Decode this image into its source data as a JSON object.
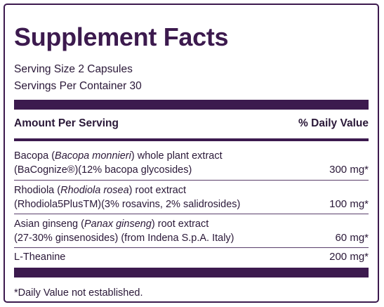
{
  "title": "Supplement Facts",
  "serving_size": "Serving Size 2 Capsules",
  "servings_per_container": "Servings Per Container 30",
  "header": {
    "amount_per_serving": "Amount Per Serving",
    "daily_value": "% Daily Value"
  },
  "ingredients": [
    {
      "line1_pre": "Bacopa (",
      "line1_italic": "Bacopa monnieri",
      "line1_post": ") whole plant extract",
      "line2": "(BaCognize®)(12% bacopa glycosides)",
      "amount": "300 mg*"
    },
    {
      "line1_pre": "Rhodiola (",
      "line1_italic": "Rhodiola rosea",
      "line1_post": ") root extract",
      "line2": "(Rhodiola5PlusTM)(3% rosavins, 2% salidrosides)",
      "amount": "100 mg*"
    },
    {
      "line1_pre": "Asian ginseng (",
      "line1_italic": "Panax ginseng",
      "line1_post": ") root extract",
      "line2": "(27-30% ginsenosides) (from Indena S.p.A. Italy)",
      "amount": "60 mg*"
    },
    {
      "line1": "L-Theanine",
      "amount": "200 mg*"
    }
  ],
  "footnote": "*Daily Value not established.",
  "colors": {
    "accent": "#3c1a4e",
    "text": "#2a1838"
  }
}
